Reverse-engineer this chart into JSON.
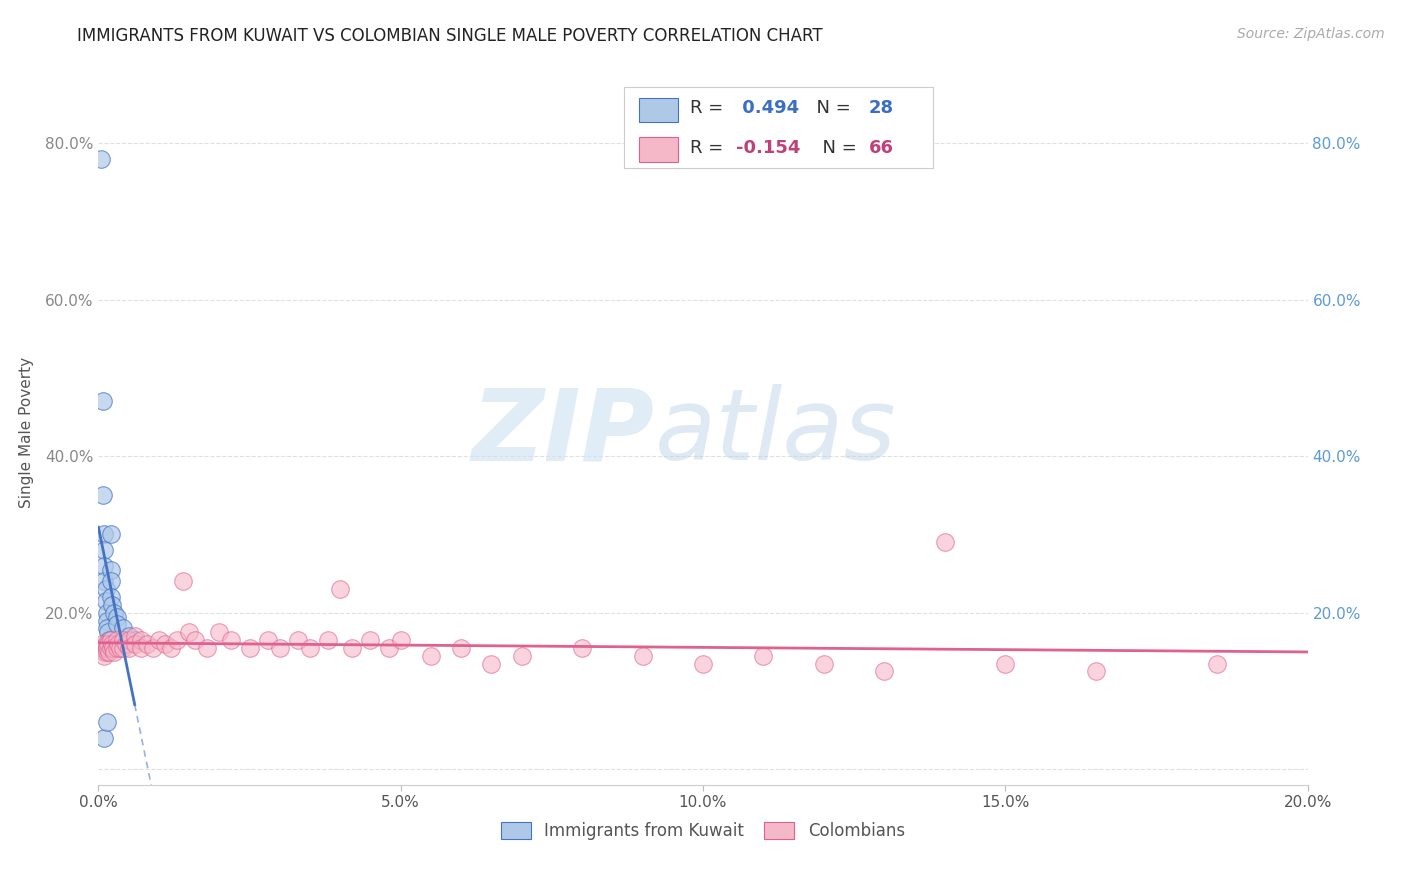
{
  "title": "IMMIGRANTS FROM KUWAIT VS COLOMBIAN SINGLE MALE POVERTY CORRELATION CHART",
  "source": "Source: ZipAtlas.com",
  "ylabel": "Single Male Poverty",
  "xlim": [
    0.0,
    0.2
  ],
  "ylim": [
    -0.02,
    0.88
  ],
  "xticks": [
    0.0,
    0.05,
    0.1,
    0.15,
    0.2
  ],
  "xtick_labels": [
    "0.0%",
    "5.0%",
    "10.0%",
    "15.0%",
    "20.0%"
  ],
  "yticks": [
    0.0,
    0.2,
    0.4,
    0.6,
    0.8
  ],
  "ytick_labels": [
    "",
    "20.0%",
    "40.0%",
    "60.0%",
    "80.0%"
  ],
  "kuwait_R": 0.494,
  "kuwait_N": 28,
  "colombian_R": -0.154,
  "colombian_N": 66,
  "kuwait_color": "#aec9e8",
  "colombian_color": "#f5b8c8",
  "kuwait_line_color": "#4472c4",
  "colombian_line_color": "#e06090",
  "background_color": "#ffffff",
  "watermark_zip": "ZIP",
  "watermark_atlas": "atlas",
  "grid_color": "#e0e0e0",
  "kuwait_x": [
    0.0005,
    0.0007,
    0.0008,
    0.0009,
    0.001,
    0.001,
    0.001,
    0.0012,
    0.0013,
    0.0014,
    0.0015,
    0.0015,
    0.0016,
    0.0017,
    0.0018,
    0.002,
    0.002,
    0.002,
    0.002,
    0.0022,
    0.0025,
    0.003,
    0.003,
    0.004,
    0.005,
    0.006,
    0.001,
    0.0015
  ],
  "kuwait_y": [
    0.78,
    0.47,
    0.35,
    0.3,
    0.28,
    0.26,
    0.24,
    0.23,
    0.215,
    0.2,
    0.19,
    0.18,
    0.175,
    0.165,
    0.16,
    0.3,
    0.255,
    0.24,
    0.22,
    0.21,
    0.2,
    0.195,
    0.185,
    0.18,
    0.17,
    0.165,
    0.04,
    0.06
  ],
  "colombian_x": [
    0.0004,
    0.0006,
    0.0008,
    0.001,
    0.001,
    0.001,
    0.0012,
    0.0014,
    0.0015,
    0.0016,
    0.0018,
    0.002,
    0.002,
    0.0022,
    0.0024,
    0.0026,
    0.003,
    0.003,
    0.0032,
    0.0035,
    0.004,
    0.004,
    0.0045,
    0.005,
    0.005,
    0.006,
    0.006,
    0.007,
    0.007,
    0.008,
    0.009,
    0.01,
    0.011,
    0.012,
    0.013,
    0.014,
    0.015,
    0.016,
    0.018,
    0.02,
    0.022,
    0.025,
    0.028,
    0.03,
    0.033,
    0.035,
    0.038,
    0.04,
    0.042,
    0.045,
    0.048,
    0.05,
    0.055,
    0.06,
    0.065,
    0.07,
    0.08,
    0.09,
    0.1,
    0.11,
    0.12,
    0.13,
    0.14,
    0.15,
    0.165,
    0.185
  ],
  "colombian_y": [
    0.155,
    0.16,
    0.155,
    0.155,
    0.15,
    0.145,
    0.16,
    0.15,
    0.155,
    0.16,
    0.15,
    0.165,
    0.155,
    0.16,
    0.155,
    0.15,
    0.165,
    0.155,
    0.16,
    0.155,
    0.165,
    0.155,
    0.16,
    0.165,
    0.155,
    0.17,
    0.16,
    0.165,
    0.155,
    0.16,
    0.155,
    0.165,
    0.16,
    0.155,
    0.165,
    0.24,
    0.175,
    0.165,
    0.155,
    0.175,
    0.165,
    0.155,
    0.165,
    0.155,
    0.165,
    0.155,
    0.165,
    0.23,
    0.155,
    0.165,
    0.155,
    0.165,
    0.145,
    0.155,
    0.135,
    0.145,
    0.155,
    0.145,
    0.135,
    0.145,
    0.135,
    0.125,
    0.29,
    0.135,
    0.125,
    0.135
  ]
}
